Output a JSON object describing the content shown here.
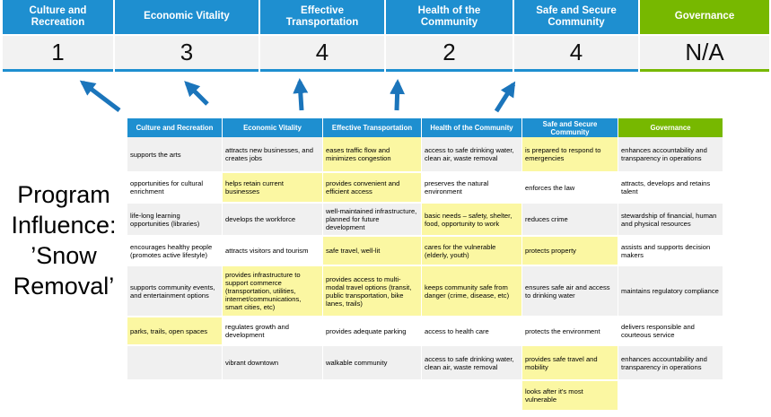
{
  "colors": {
    "header_blue": "#1E8FD0",
    "header_green": "#77B800",
    "highlight_yellow": "#FBF7A2",
    "row_band_gray": "#F0F0F0",
    "score_row_gray": "#F2F2F2",
    "arrow_blue": "#1B75BB"
  },
  "program_title": {
    "full_text": "Program Influence: ’Snow Removal’",
    "lines": [
      "Program",
      "Influence:",
      "’Snow",
      "Removal’"
    ]
  },
  "scoreboard": {
    "columns": [
      {
        "label": "Culture and Recreation",
        "score": "1",
        "theme": "blue"
      },
      {
        "label": "Economic Vitality",
        "score": "3",
        "theme": "blue"
      },
      {
        "label": "Effective Transportation",
        "score": "4",
        "theme": "blue"
      },
      {
        "label": "Health of the Community",
        "score": "2",
        "theme": "blue"
      },
      {
        "label": "Safe and Secure Community",
        "score": "4",
        "theme": "blue"
      },
      {
        "label": "Governance",
        "score": "N/A",
        "theme": "green"
      }
    ]
  },
  "matrix_table": {
    "headers": [
      {
        "label": "Culture and Recreation",
        "theme": "blue"
      },
      {
        "label": "Economic Vitality",
        "theme": "blue"
      },
      {
        "label": "Effective Transportation",
        "theme": "blue"
      },
      {
        "label": "Health of the Community",
        "theme": "blue"
      },
      {
        "label": "Safe and Secure Community",
        "theme": "blue"
      },
      {
        "label": "Governance",
        "theme": "green"
      }
    ],
    "rows": [
      [
        {
          "text": "supports the arts",
          "highlight": false
        },
        {
          "text": "attracts new businesses, and creates jobs",
          "highlight": false
        },
        {
          "text": "eases traffic flow and minimizes congestion",
          "highlight": true
        },
        {
          "text": "access to safe drinking water, clean air, waste removal",
          "highlight": false
        },
        {
          "text": "is prepared to respond to emergencies",
          "highlight": true
        },
        {
          "text": "enhances accountability and transparency in operations",
          "highlight": false
        }
      ],
      [
        {
          "text": "opportunities for cultural enrichment",
          "highlight": false
        },
        {
          "text": "helps retain current businesses",
          "highlight": true
        },
        {
          "text": "provides convenient and efficient access",
          "highlight": true
        },
        {
          "text": "preserves the natural environment",
          "highlight": false
        },
        {
          "text": "enforces the law",
          "highlight": false
        },
        {
          "text": "attracts, develops and retains talent",
          "highlight": false
        }
      ],
      [
        {
          "text": "life-long learning opportunities (libraries)",
          "highlight": false
        },
        {
          "text": "develops the workforce",
          "highlight": false
        },
        {
          "text": "well-maintained infrastructure, planned for future development",
          "highlight": false
        },
        {
          "text": "basic needs – safety, shelter, food, opportunity to work",
          "highlight": true
        },
        {
          "text": "reduces crime",
          "highlight": false
        },
        {
          "text": "stewardship of financial, human and physical resources",
          "highlight": false
        }
      ],
      [
        {
          "text": "encourages healthy people (promotes active lifestyle)",
          "highlight": false
        },
        {
          "text": "attracts visitors and tourism",
          "highlight": false
        },
        {
          "text": "safe travel, well-lit",
          "highlight": true
        },
        {
          "text": "cares for the vulnerable (elderly, youth)",
          "highlight": true
        },
        {
          "text": "protects property",
          "highlight": true
        },
        {
          "text": "assists and supports decision makers",
          "highlight": false
        }
      ],
      [
        {
          "text": "supports community events, and entertainment options",
          "highlight": false
        },
        {
          "text": "provides infrastructure to support commerce (transportation, utilities, internet/communications, smart cities, etc)",
          "highlight": true
        },
        {
          "text": "provides access to multi-modal travel options (transit, public transportation, bike lanes, trails)",
          "highlight": true
        },
        {
          "text": "keeps community safe from danger (crime, disease, etc)",
          "highlight": true
        },
        {
          "text": "ensures safe air and access to drinking water",
          "highlight": false
        },
        {
          "text": "maintains regulatory compliance",
          "highlight": false
        }
      ],
      [
        {
          "text": "parks, trails, open spaces",
          "highlight": true
        },
        {
          "text": "regulates growth and development",
          "highlight": false
        },
        {
          "text": "provides adequate parking",
          "highlight": false
        },
        {
          "text": "access to health care",
          "highlight": false
        },
        {
          "text": "protects the environment",
          "highlight": false
        },
        {
          "text": "delivers responsible and courteous service",
          "highlight": false
        }
      ],
      [
        {
          "text": "",
          "highlight": false
        },
        {
          "text": "vibrant downtown",
          "highlight": false
        },
        {
          "text": "walkable community",
          "highlight": false
        },
        {
          "text": "access to safe drinking water, clean air, waste removal",
          "highlight": false
        },
        {
          "text": "provides safe travel and mobility",
          "highlight": true
        },
        {
          "text": "enhances accountability and transparency in operations",
          "highlight": false
        }
      ],
      [
        {
          "text": "",
          "highlight": false
        },
        {
          "text": "",
          "highlight": false
        },
        {
          "text": "",
          "highlight": false
        },
        {
          "text": "",
          "highlight": false
        },
        {
          "text": "looks after it's most vulnerable",
          "highlight": true
        },
        {
          "text": "",
          "highlight": false
        }
      ]
    ]
  }
}
